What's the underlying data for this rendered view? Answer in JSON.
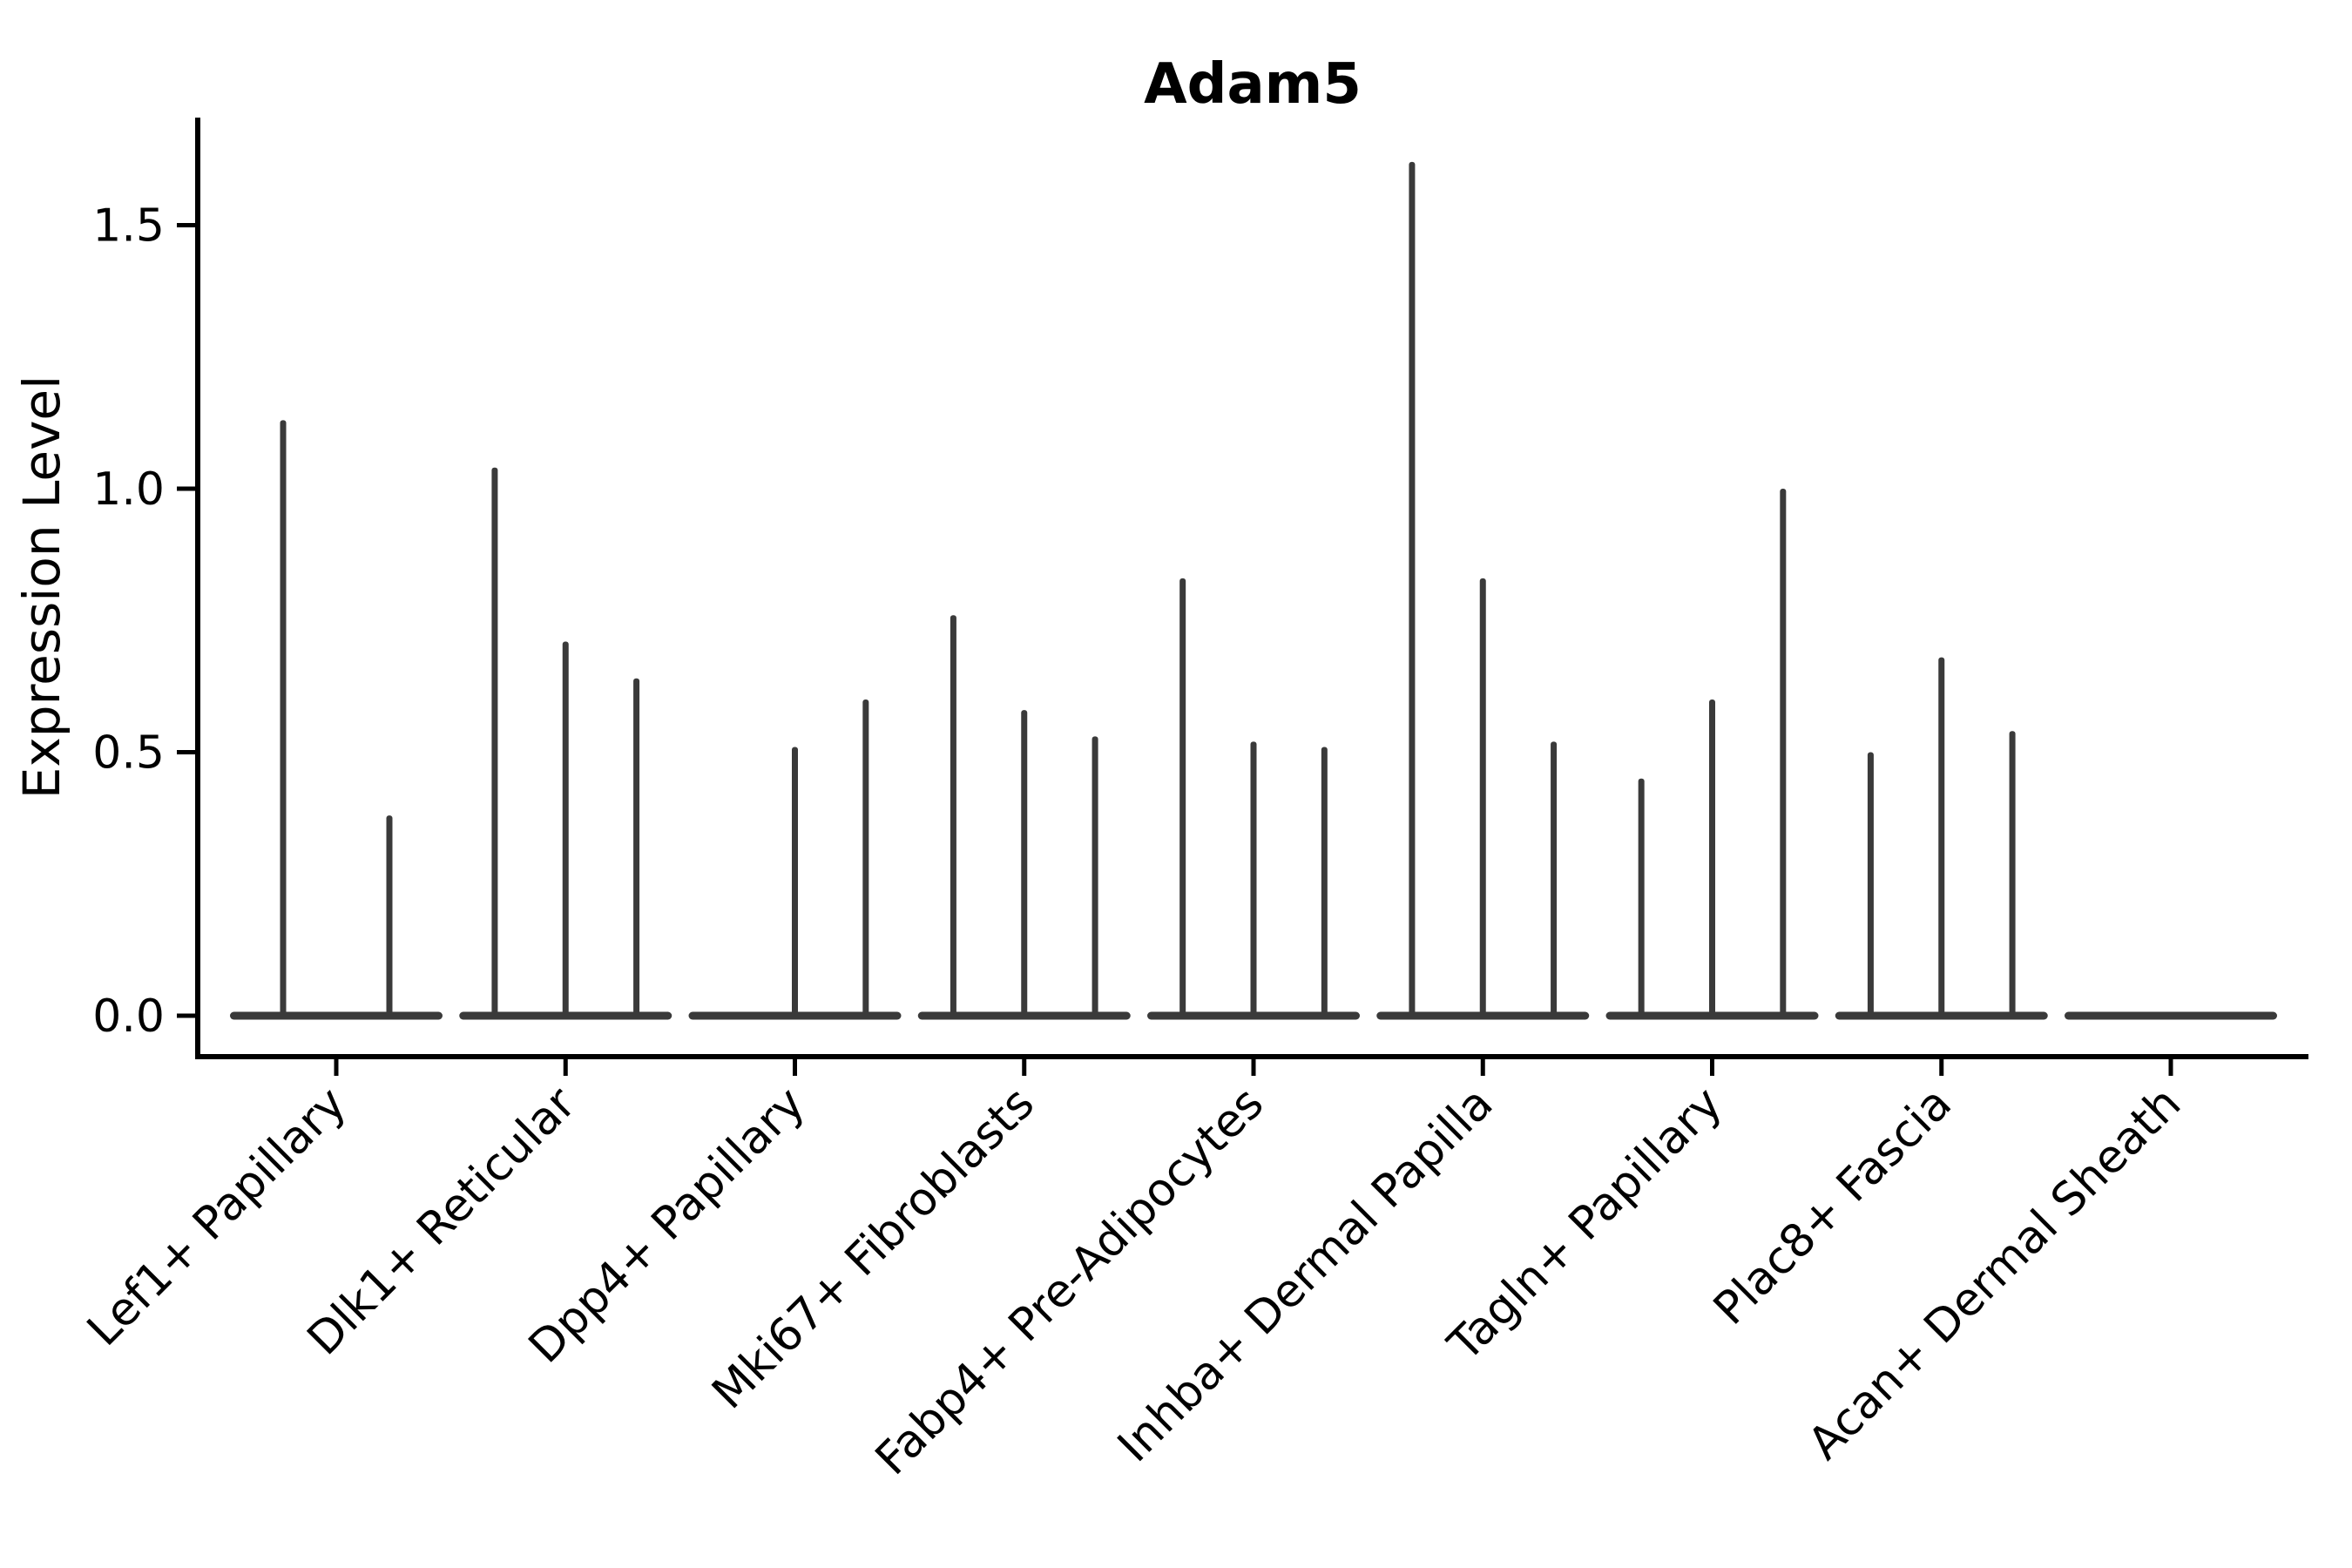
{
  "figure": {
    "background": "#ffffff"
  },
  "chart_data": {
    "type": "violin",
    "title": "Adam5",
    "xlabel": "",
    "ylabel": "Expression Level",
    "ylim": [
      -0.08,
      1.7
    ],
    "yticks": [
      0.0,
      0.5,
      1.0,
      1.5
    ],
    "ytick_labels": [
      "0.0",
      "0.5",
      "1.0",
      "1.5"
    ],
    "grid": false,
    "legend_position": "none",
    "x_label_rotation_deg": 45,
    "colors": {
      "violin_line": "#3a3a3a",
      "axis": "#000000",
      "text": "#000000"
    },
    "categories": [
      "Lef1+ Papillary",
      "Dlk1+ Reticular",
      "Dpp4+ Papillary",
      "Mki67+ Fibroblasts",
      "Fabp4+ Pre-Adipocytes",
      "Inhba+ Dermal Papilla",
      "Tagln+ Papillary",
      "Plac8+ Fascia",
      "Acan+ Dermal Sheath"
    ],
    "violins": [
      {
        "category": "Lef1+ Papillary",
        "spike_maxima": [
          1.13,
          0.38
        ]
      },
      {
        "category": "Dlk1+ Reticular",
        "spike_maxima": [
          1.04,
          0.71,
          0.64
        ]
      },
      {
        "category": "Dpp4+ Papillary",
        "spike_maxima": [
          0,
          0.51,
          0.6
        ]
      },
      {
        "category": "Mki67+ Fibroblasts",
        "spike_maxima": [
          0.76,
          0.58,
          0.53
        ]
      },
      {
        "category": "Fabp4+ Pre-Adipocytes",
        "spike_maxima": [
          0.83,
          0.52,
          0.51
        ]
      },
      {
        "category": "Inhba+ Dermal Papilla",
        "spike_maxima": [
          1.62,
          0.83,
          0.52
        ]
      },
      {
        "category": "Tagln+ Papillary",
        "spike_maxima": [
          0.45,
          0.6,
          1.0
        ]
      },
      {
        "category": "Plac8+ Fascia",
        "spike_maxima": [
          0.5,
          0.68,
          0.54
        ]
      },
      {
        "category": "Acan+ Dermal Sheath",
        "spike_maxima": [
          0,
          0,
          0
        ]
      }
    ]
  }
}
